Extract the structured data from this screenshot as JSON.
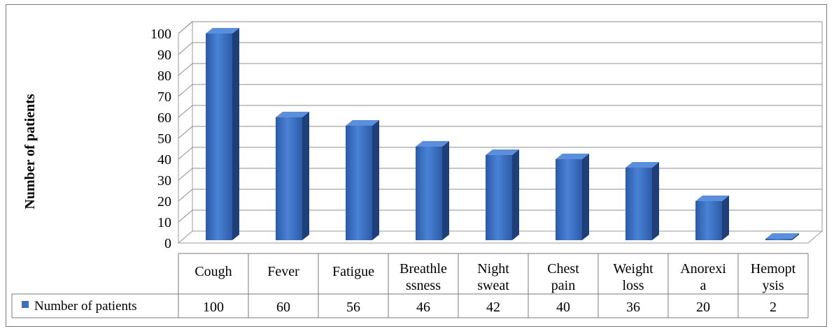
{
  "chart_data": {
    "type": "bar",
    "title": "",
    "xlabel": "",
    "ylabel": "Number of patients",
    "ylim": [
      0,
      100
    ],
    "yticks": [
      0,
      10,
      20,
      30,
      40,
      50,
      60,
      70,
      80,
      90,
      100
    ],
    "grid": true,
    "legend_placement": "data-table",
    "categories": [
      [
        "Cough"
      ],
      [
        "Fever"
      ],
      [
        "Fatigue"
      ],
      [
        "Breathle",
        "ssness"
      ],
      [
        "Night",
        "sweat"
      ],
      [
        "Chest",
        "pain"
      ],
      [
        "Weight",
        "loss"
      ],
      [
        "Anorexi",
        "a"
      ],
      [
        "Hemopt",
        "ysis"
      ]
    ],
    "series": [
      {
        "name": "Number of patients",
        "values": [
          100,
          60,
          56,
          46,
          42,
          40,
          36,
          20,
          2
        ],
        "color": "#3a6fc4"
      }
    ]
  }
}
